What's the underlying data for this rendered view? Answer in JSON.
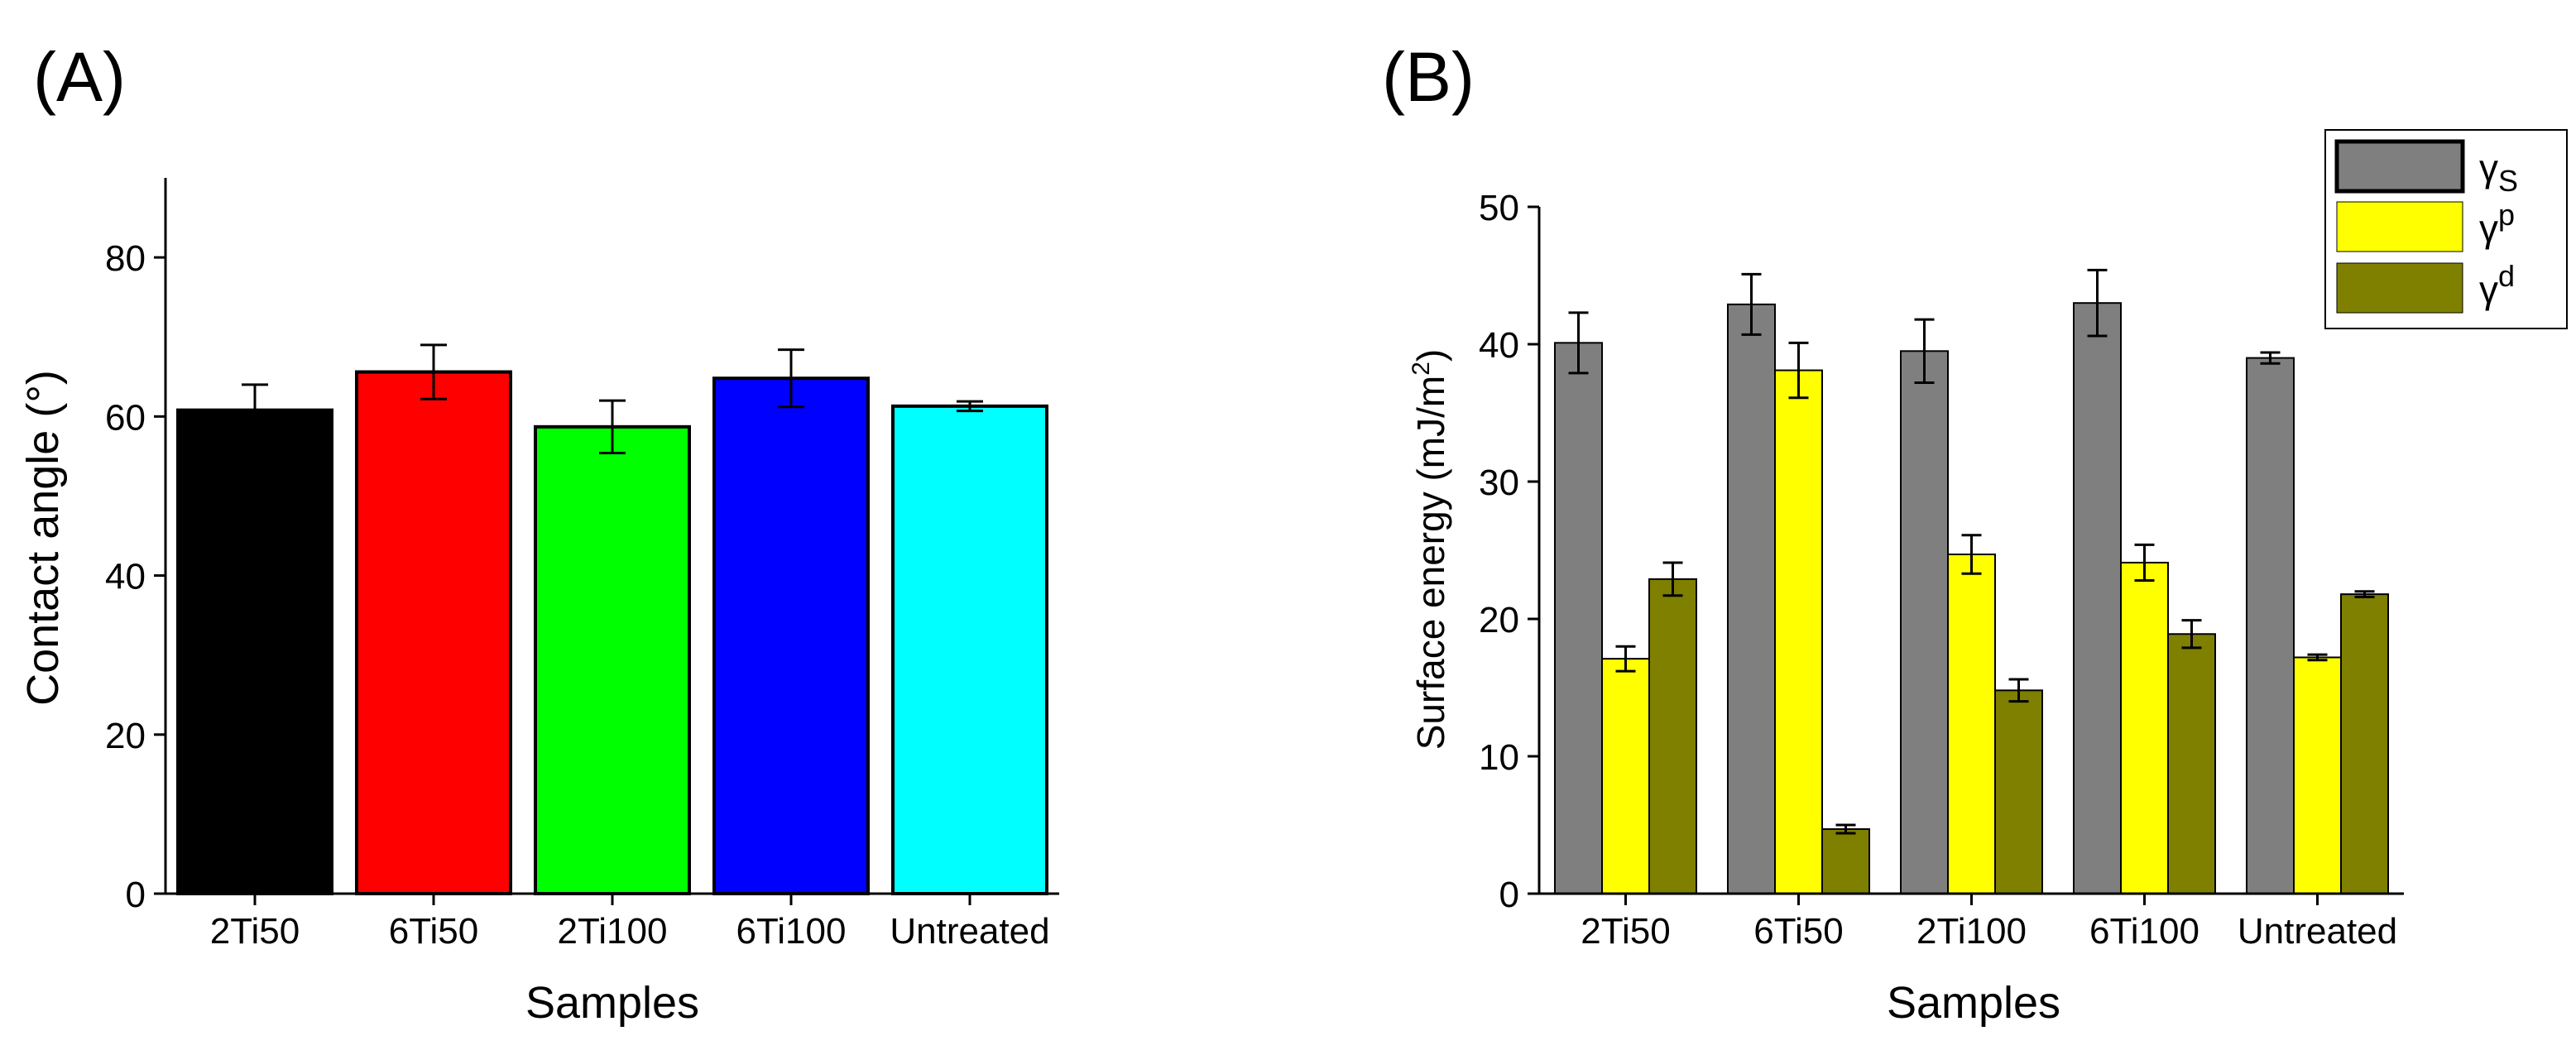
{
  "chart_data": [
    {
      "type": "bar",
      "panel_label": "(A)",
      "categories": [
        "2Ti50",
        "6Ti50",
        "2Ti100",
        "6Ti100",
        "Untreated"
      ],
      "values": [
        60.8,
        65.6,
        58.7,
        64.8,
        61.3
      ],
      "errors": [
        3.2,
        3.4,
        3.3,
        3.6,
        0.6
      ],
      "colors": [
        "#000000",
        "#ff0000",
        "#00ff00",
        "#0000ff",
        "#00ffff"
      ],
      "xlabel": "Samples",
      "ylabel": "Contact angle (°)",
      "ylim": [
        0,
        90
      ],
      "yticks": [
        0,
        20,
        40,
        60,
        80
      ],
      "grid": false,
      "legend": "none"
    },
    {
      "type": "bar",
      "panel_label": "(B)",
      "categories": [
        "2Ti50",
        "6Ti50",
        "2Ti100",
        "6Ti100",
        "Untreated"
      ],
      "series": [
        {
          "name": "γS",
          "color": "#7f7f7f",
          "values": [
            40.1,
            42.9,
            39.5,
            43.0,
            39.0
          ],
          "errors": [
            2.2,
            2.2,
            2.3,
            2.4,
            0.4
          ]
        },
        {
          "name": "γp",
          "color": "#ffff00",
          "values": [
            17.1,
            38.1,
            24.7,
            24.1,
            17.2
          ],
          "errors": [
            0.9,
            2.0,
            1.4,
            1.3,
            0.2
          ]
        },
        {
          "name": "γd",
          "color": "#7f7f00",
          "values": [
            22.9,
            4.7,
            14.8,
            18.9,
            21.8
          ],
          "errors": [
            1.2,
            0.3,
            0.8,
            1.0,
            0.2
          ]
        }
      ],
      "xlabel": "Samples",
      "ylabel": "Surface energy (mJ/m2)",
      "ylim": [
        0,
        50
      ],
      "yticks": [
        0,
        10,
        20,
        30,
        40,
        50
      ],
      "grid": false,
      "legend": "top-right"
    }
  ]
}
